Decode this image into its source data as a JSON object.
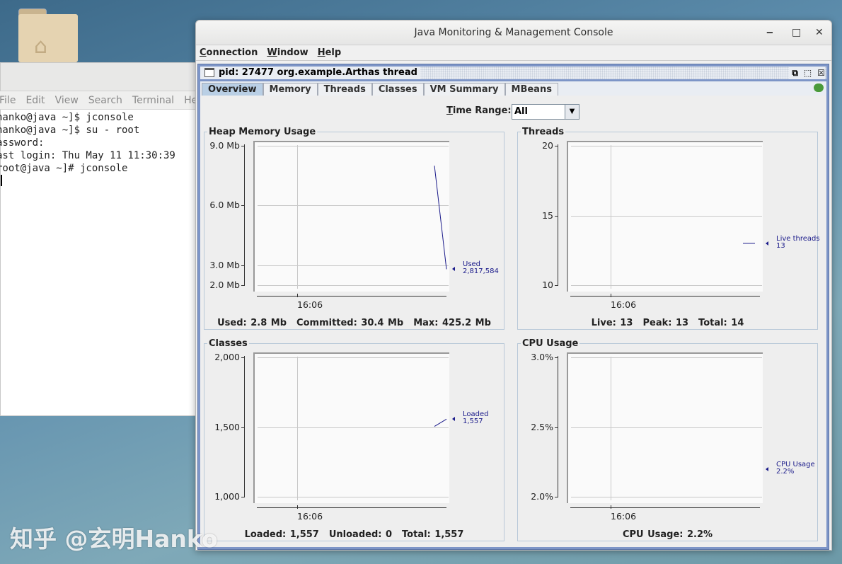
{
  "desktop": {
    "folder_icon": "home-folder-icon",
    "watermark": "知乎 @玄明Hanko"
  },
  "terminal": {
    "menu": [
      "File",
      "Edit",
      "View",
      "Search",
      "Terminal",
      "He"
    ],
    "lines": [
      "hanko@java ~]$ jconsole",
      "hanko@java ~]$ su - root",
      "assword:",
      "ast login: Thu May 11 11:30:39",
      "root@java ~]# jconsole"
    ]
  },
  "window": {
    "title": "Java Monitoring & Management Console",
    "controls": {
      "minimize": "‒",
      "maximize": "□",
      "close": "✕"
    },
    "menu": [
      "Connection",
      "Window",
      "Help"
    ],
    "internal_title": "pid: 27477 org.example.Arthas thread",
    "tabs": [
      "Overview",
      "Memory",
      "Threads",
      "Classes",
      "VM Summary",
      "MBeans"
    ],
    "active_tab": "Overview",
    "time_range": {
      "label_u": "T",
      "label": "ime Range:",
      "value": "All"
    }
  },
  "chart_data": [
    {
      "type": "line",
      "title": "Heap Memory Usage",
      "ylim": [
        2.0,
        9.0
      ],
      "yticks": [
        {
          "v": 9.0,
          "label": "9.0 Mb"
        },
        {
          "v": 6.0,
          "label": "6.0 Mb"
        },
        {
          "v": 3.0,
          "label": "3.0 Mb"
        },
        {
          "v": 2.0,
          "label": "2.0 Mb"
        }
      ],
      "xticks": [
        "16:06"
      ],
      "series": [
        {
          "name": "Used",
          "values": [
            8.0,
            2.8
          ],
          "latest": "2,817,584",
          "marker": 2.8
        }
      ],
      "color": "#1a1a8a",
      "grid": true,
      "summary": [
        "Used: 2.8 Mb",
        "Committed: 30.4 Mb",
        "Max: 425.2 Mb"
      ]
    },
    {
      "type": "line",
      "title": "Threads",
      "ylim": [
        10,
        20
      ],
      "yticks": [
        {
          "v": 20,
          "label": "20"
        },
        {
          "v": 15,
          "label": "15"
        },
        {
          "v": 10,
          "label": "10"
        }
      ],
      "xticks": [
        "16:06"
      ],
      "series": [
        {
          "name": "Live threads",
          "values": [
            13,
            13
          ],
          "latest": "13",
          "marker": 13,
          "offplot": true
        }
      ],
      "color": "#1a1a8a",
      "grid": true,
      "summary": [
        "Live: 13",
        "Peak: 13",
        "Total: 14"
      ]
    },
    {
      "type": "line",
      "title": "Classes",
      "ylim": [
        1000,
        2000
      ],
      "yticks": [
        {
          "v": 2000,
          "label": "2,000"
        },
        {
          "v": 1500,
          "label": "1,500"
        },
        {
          "v": 1000,
          "label": "1,000"
        }
      ],
      "xticks": [
        "16:06"
      ],
      "series": [
        {
          "name": "Loaded",
          "values": [
            1505,
            1557
          ],
          "latest": "1,557",
          "marker": 1557
        }
      ],
      "color": "#1a1a8a",
      "grid": true,
      "summary": [
        "Loaded: 1,557",
        "Unloaded: 0",
        "Total: 1,557"
      ]
    },
    {
      "type": "line",
      "title": "CPU Usage",
      "ylim": [
        2.0,
        3.0
      ],
      "yticks": [
        {
          "v": 3.0,
          "label": "3.0%"
        },
        {
          "v": 2.5,
          "label": "2.5%"
        },
        {
          "v": 2.0,
          "label": "2.0%"
        }
      ],
      "xticks": [
        "16:06"
      ],
      "series": [
        {
          "name": "CPU Usage",
          "values": [],
          "latest": "2.2%",
          "marker": 2.2
        }
      ],
      "color": "#1a1a8a",
      "grid": true,
      "summary": [
        "CPU Usage: 2.2%"
      ]
    }
  ]
}
